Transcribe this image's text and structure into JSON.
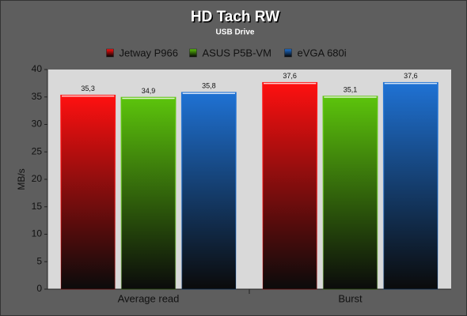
{
  "chart_data": {
    "type": "bar",
    "title": "HD Tach RW",
    "subtitle": "USB Drive",
    "y_label": "MB/s",
    "categories": [
      "Average read",
      "Burst"
    ],
    "series": [
      {
        "name": "Jetway P966",
        "color": "#ff1010",
        "values": [
          35.3,
          37.6
        ],
        "value_labels": [
          "35,3",
          "37,6"
        ]
      },
      {
        "name": "ASUS P5B-VM",
        "color": "#5cc40c",
        "values": [
          34.9,
          35.1
        ],
        "value_labels": [
          "34,9",
          "35,1"
        ]
      },
      {
        "name": "eVGA 680i",
        "color": "#1f72d4",
        "values": [
          35.8,
          37.6
        ],
        "value_labels": [
          "35,8",
          "37,6"
        ]
      }
    ],
    "ylim": [
      0,
      40
    ],
    "yticks": [
      0,
      5,
      10,
      15,
      20,
      25,
      30,
      35,
      40
    ],
    "grid": false
  }
}
